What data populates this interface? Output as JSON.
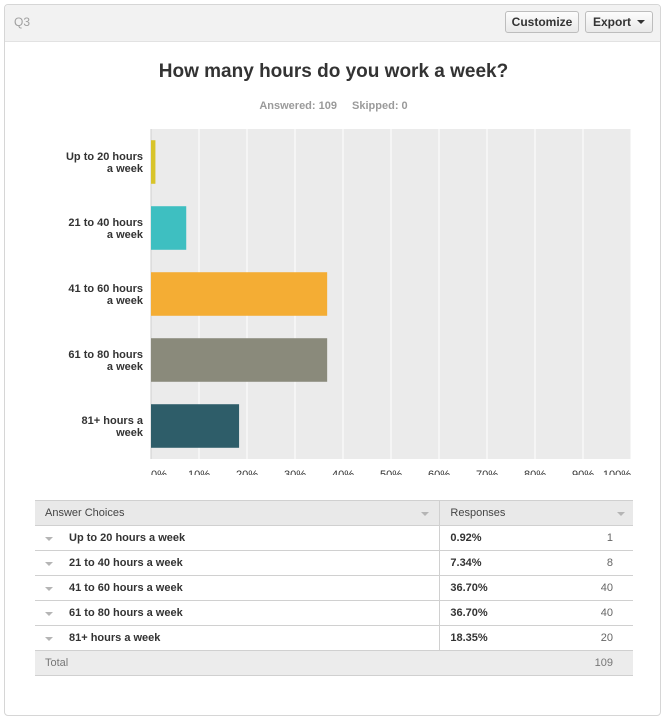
{
  "header": {
    "question_label": "Q3",
    "customize_label": "Customize",
    "export_label": "Export"
  },
  "title": "How many hours do you work a week?",
  "stats": {
    "answered": "Answered: 109",
    "skipped": "Skipped: 0"
  },
  "colors": {
    "grid_bg": "#ebebeb",
    "grid_line": "#ffffff",
    "bars": [
      "#d8c42a",
      "#3ebfc1",
      "#f4ad34",
      "#8a8a7b",
      "#2e5d69"
    ]
  },
  "chart_data": {
    "type": "bar",
    "orientation": "horizontal",
    "categories": [
      [
        "Up to 20 hours",
        "a week"
      ],
      [
        "21 to 40 hours",
        "a week"
      ],
      [
        "41 to 60 hours",
        "a week"
      ],
      [
        "61 to 80 hours",
        "a week"
      ],
      [
        "81+ hours a",
        "week"
      ]
    ],
    "values": [
      0.92,
      7.34,
      36.7,
      36.7,
      18.35
    ],
    "xlim": [
      0,
      100
    ],
    "xticks": [
      "0%",
      "10%",
      "20%",
      "30%",
      "40%",
      "50%",
      "60%",
      "70%",
      "80%",
      "90%",
      "100%"
    ],
    "grid": true
  },
  "table": {
    "headers": {
      "choice": "Answer Choices",
      "responses": "Responses"
    },
    "rows": [
      {
        "choice": "Up to 20 hours a week",
        "percent": "0.92%",
        "count": "1"
      },
      {
        "choice": "21 to 40 hours a week",
        "percent": "7.34%",
        "count": "8"
      },
      {
        "choice": "41 to 60 hours a week",
        "percent": "36.70%",
        "count": "40"
      },
      {
        "choice": "61 to 80 hours a week",
        "percent": "36.70%",
        "count": "40"
      },
      {
        "choice": "81+ hours a week",
        "percent": "18.35%",
        "count": "20"
      }
    ],
    "total": {
      "label": "Total",
      "count": "109"
    }
  }
}
